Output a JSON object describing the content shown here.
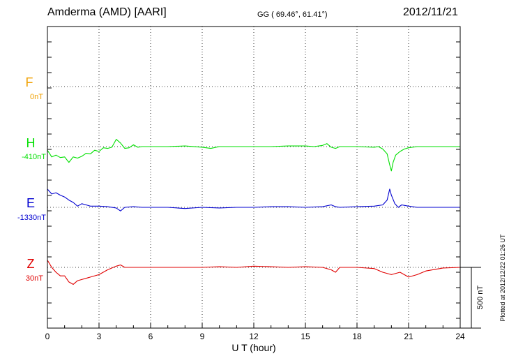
{
  "header": {
    "station": "Amderma (AMD)  [AARI]",
    "coords": "GG ( 69.46°,  61.41°)",
    "date": "2012/11/21"
  },
  "side_note": "Plotted at 2012/12/22 01:26 UT",
  "colors": {
    "F": "#f0a000",
    "H": "#00e000",
    "E": "#0000d0",
    "Z": "#e00000"
  },
  "chart_data": {
    "type": "line",
    "xlabel": "U T (hour)",
    "xlim": [
      0,
      24
    ],
    "x_ticks": [
      "0",
      "3",
      "6",
      "9",
      "12",
      "15",
      "18",
      "21",
      "24"
    ],
    "grid": true,
    "scale_bar": "500 nT",
    "components": [
      {
        "name": "F",
        "offset_label": "0nT"
      },
      {
        "name": "H",
        "offset_label": "-410nT"
      },
      {
        "name": "E",
        "offset_label": "-1330nT"
      },
      {
        "name": "Z",
        "offset_label": "30nT"
      }
    ],
    "series": [
      {
        "name": "H",
        "x": [
          0,
          0.25,
          0.5,
          0.75,
          1.0,
          1.25,
          1.5,
          1.75,
          2.0,
          2.25,
          2.5,
          2.75,
          3.0,
          3.25,
          3.5,
          3.75,
          4.0,
          4.25,
          4.5,
          4.75,
          5.0,
          5.25,
          5.5,
          6,
          7,
          8,
          9,
          9.5,
          10,
          11,
          12,
          13,
          14,
          15,
          15.5,
          16,
          16.25,
          16.5,
          16.75,
          17,
          18,
          19,
          19.25,
          19.5,
          19.75,
          19.9,
          20.0,
          20.1,
          20.25,
          20.5,
          20.75,
          21,
          21.5,
          22,
          23,
          24
        ],
        "y": [
          -30,
          -85,
          -70,
          -90,
          -85,
          -130,
          -85,
          -95,
          -80,
          -55,
          -60,
          -30,
          -40,
          -10,
          -15,
          -5,
          60,
          30,
          -15,
          -10,
          15,
          -5,
          0,
          0,
          0,
          5,
          -5,
          -15,
          0,
          0,
          0,
          0,
          5,
          5,
          0,
          10,
          25,
          -5,
          -15,
          0,
          0,
          -5,
          0,
          -20,
          -60,
          -150,
          -200,
          -130,
          -70,
          -40,
          -20,
          -10,
          0,
          0,
          0,
          0
        ]
      },
      {
        "name": "E",
        "x": [
          0,
          0.25,
          0.5,
          0.75,
          1.0,
          1.25,
          1.5,
          1.75,
          2.0,
          2.25,
          2.5,
          3,
          3.5,
          4,
          4.25,
          4.5,
          5,
          5.5,
          6,
          7,
          8,
          9,
          10,
          11,
          12,
          13,
          14,
          15,
          16,
          16.5,
          16.75,
          17,
          18,
          19,
          19.5,
          19.75,
          19.9,
          20.0,
          20.2,
          20.4,
          20.6,
          20.8,
          21,
          21.5,
          22,
          23,
          24
        ],
        "y": [
          150,
          110,
          120,
          100,
          85,
          60,
          40,
          10,
          30,
          20,
          10,
          10,
          5,
          -5,
          -30,
          0,
          5,
          0,
          0,
          0,
          -10,
          0,
          -5,
          0,
          0,
          5,
          5,
          0,
          5,
          20,
          5,
          0,
          5,
          10,
          20,
          60,
          150,
          100,
          30,
          0,
          20,
          15,
          10,
          0,
          0,
          0,
          0
        ]
      },
      {
        "name": "Z",
        "x": [
          0,
          0.25,
          0.5,
          0.75,
          1.0,
          1.25,
          1.5,
          1.75,
          2.0,
          2.5,
          3.0,
          3.5,
          4,
          4.25,
          4.5,
          5,
          6,
          7,
          8,
          9,
          10,
          11,
          12,
          13,
          14,
          15,
          16,
          16.5,
          16.75,
          17,
          18,
          19,
          19.5,
          20,
          20.5,
          21,
          21.5,
          22,
          23,
          24
        ],
        "y": [
          60,
          0,
          -40,
          -70,
          -70,
          -120,
          -140,
          -110,
          -100,
          -80,
          -60,
          -20,
          10,
          20,
          0,
          0,
          0,
          0,
          0,
          0,
          5,
          0,
          10,
          5,
          0,
          5,
          0,
          -20,
          -40,
          0,
          0,
          -10,
          -40,
          -60,
          -40,
          -80,
          -60,
          -30,
          -5,
          0
        ]
      }
    ]
  }
}
